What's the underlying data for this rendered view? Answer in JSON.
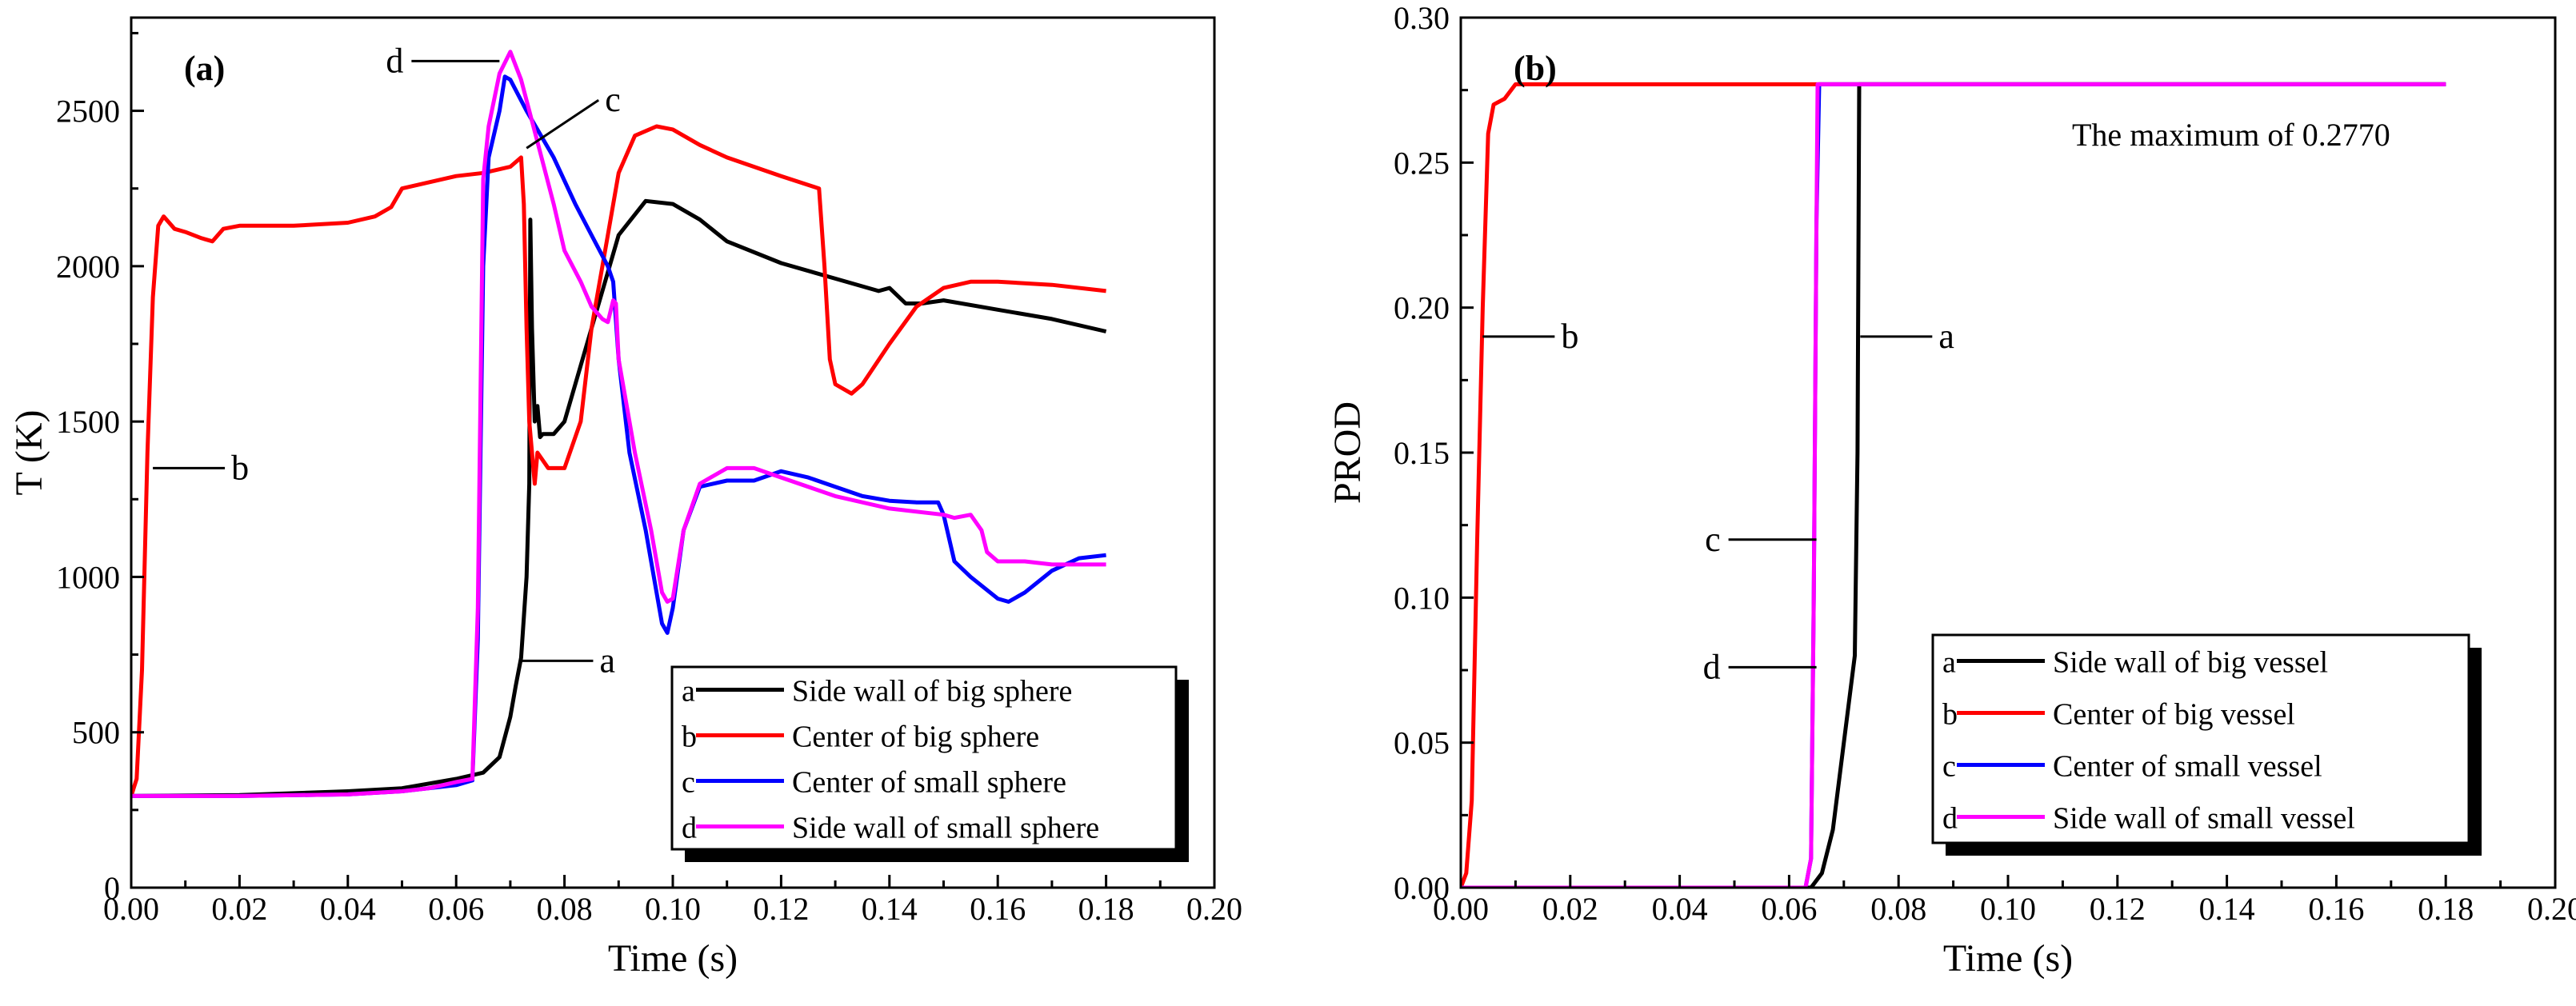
{
  "chart_data": [
    {
      "type": "line",
      "panel_label": "(a)",
      "xlabel": "Time (s)",
      "ylabel": "T (K)",
      "xlim": [
        0,
        0.2
      ],
      "ylim": [
        0,
        2800
      ],
      "xticks": [
        "0.00",
        "0.02",
        "0.04",
        "0.06",
        "0.08",
        "0.10",
        "0.12",
        "0.14",
        "0.16",
        "0.18",
        "0.20"
      ],
      "yticks": [
        "0",
        "500",
        "1000",
        "1500",
        "2000",
        "2500"
      ],
      "legend_position": "bottom-right",
      "series": [
        {
          "key": "a",
          "name": "Side wall of big sphere",
          "color": "#000000",
          "points": [
            [
              0,
              295
            ],
            [
              0.02,
              298
            ],
            [
              0.04,
              310
            ],
            [
              0.05,
              320
            ],
            [
              0.06,
              350
            ],
            [
              0.065,
              370
            ],
            [
              0.068,
              420
            ],
            [
              0.07,
              550
            ],
            [
              0.071,
              650
            ],
            [
              0.072,
              740
            ],
            [
              0.073,
              1000
            ],
            [
              0.0735,
              1300
            ],
            [
              0.0737,
              2150
            ],
            [
              0.074,
              1800
            ],
            [
              0.0745,
              1500
            ],
            [
              0.075,
              1550
            ],
            [
              0.0755,
              1450
            ],
            [
              0.076,
              1460
            ],
            [
              0.078,
              1460
            ],
            [
              0.08,
              1500
            ],
            [
              0.085,
              1800
            ],
            [
              0.09,
              2100
            ],
            [
              0.095,
              2210
            ],
            [
              0.1,
              2200
            ],
            [
              0.105,
              2150
            ],
            [
              0.11,
              2080
            ],
            [
              0.12,
              2010
            ],
            [
              0.13,
              1960
            ],
            [
              0.138,
              1920
            ],
            [
              0.14,
              1930
            ],
            [
              0.143,
              1880
            ],
            [
              0.146,
              1880
            ],
            [
              0.15,
              1890
            ],
            [
              0.16,
              1860
            ],
            [
              0.17,
              1830
            ],
            [
              0.18,
              1790
            ]
          ]
        },
        {
          "key": "b",
          "name": "Center of big sphere",
          "color": "#ff0000",
          "points": [
            [
              0,
              295
            ],
            [
              0.001,
              350
            ],
            [
              0.002,
              700
            ],
            [
              0.003,
              1400
            ],
            [
              0.004,
              1900
            ],
            [
              0.005,
              2130
            ],
            [
              0.006,
              2160
            ],
            [
              0.008,
              2120
            ],
            [
              0.01,
              2110
            ],
            [
              0.013,
              2090
            ],
            [
              0.015,
              2080
            ],
            [
              0.017,
              2120
            ],
            [
              0.02,
              2130
            ],
            [
              0.03,
              2130
            ],
            [
              0.04,
              2140
            ],
            [
              0.045,
              2160
            ],
            [
              0.048,
              2190
            ],
            [
              0.05,
              2250
            ],
            [
              0.055,
              2270
            ],
            [
              0.06,
              2290
            ],
            [
              0.065,
              2300
            ],
            [
              0.07,
              2320
            ],
            [
              0.072,
              2350
            ],
            [
              0.0725,
              2200
            ],
            [
              0.073,
              1800
            ],
            [
              0.0735,
              1500
            ],
            [
              0.0745,
              1300
            ],
            [
              0.075,
              1400
            ],
            [
              0.077,
              1350
            ],
            [
              0.08,
              1350
            ],
            [
              0.083,
              1500
            ],
            [
              0.085,
              1800
            ],
            [
              0.088,
              2100
            ],
            [
              0.09,
              2300
            ],
            [
              0.093,
              2420
            ],
            [
              0.097,
              2450
            ],
            [
              0.1,
              2440
            ],
            [
              0.105,
              2390
            ],
            [
              0.11,
              2350
            ],
            [
              0.12,
              2290
            ],
            [
              0.127,
              2250
            ],
            [
              0.128,
              2000
            ],
            [
              0.129,
              1700
            ],
            [
              0.13,
              1620
            ],
            [
              0.133,
              1590
            ],
            [
              0.135,
              1620
            ],
            [
              0.14,
              1750
            ],
            [
              0.145,
              1870
            ],
            [
              0.15,
              1930
            ],
            [
              0.155,
              1950
            ],
            [
              0.16,
              1950
            ],
            [
              0.17,
              1940
            ],
            [
              0.18,
              1920
            ]
          ]
        },
        {
          "key": "c",
          "name": "Center of small sphere",
          "color": "#0000ff",
          "points": [
            [
              0,
              295
            ],
            [
              0.02,
              295
            ],
            [
              0.04,
              300
            ],
            [
              0.05,
              310
            ],
            [
              0.055,
              320
            ],
            [
              0.06,
              330
            ],
            [
              0.063,
              345
            ],
            [
              0.064,
              800
            ],
            [
              0.065,
              2000
            ],
            [
              0.066,
              2350
            ],
            [
              0.068,
              2500
            ],
            [
              0.069,
              2610
            ],
            [
              0.07,
              2600
            ],
            [
              0.073,
              2500
            ],
            [
              0.078,
              2350
            ],
            [
              0.082,
              2200
            ],
            [
              0.085,
              2100
            ],
            [
              0.088,
              2000
            ],
            [
              0.089,
              1950
            ],
            [
              0.09,
              1700
            ],
            [
              0.092,
              1400
            ],
            [
              0.095,
              1150
            ],
            [
              0.097,
              950
            ],
            [
              0.098,
              850
            ],
            [
              0.099,
              820
            ],
            [
              0.1,
              900
            ],
            [
              0.102,
              1150
            ],
            [
              0.105,
              1290
            ],
            [
              0.11,
              1310
            ],
            [
              0.115,
              1310
            ],
            [
              0.12,
              1340
            ],
            [
              0.125,
              1320
            ],
            [
              0.13,
              1290
            ],
            [
              0.135,
              1260
            ],
            [
              0.14,
              1245
            ],
            [
              0.145,
              1240
            ],
            [
              0.149,
              1240
            ],
            [
              0.15,
              1200
            ],
            [
              0.152,
              1050
            ],
            [
              0.155,
              1000
            ],
            [
              0.16,
              930
            ],
            [
              0.162,
              920
            ],
            [
              0.165,
              950
            ],
            [
              0.17,
              1020
            ],
            [
              0.175,
              1060
            ],
            [
              0.18,
              1070
            ]
          ]
        },
        {
          "key": "d",
          "name": "Side wall of small sphere",
          "color": "#ff00ff",
          "points": [
            [
              0,
              295
            ],
            [
              0.02,
              295
            ],
            [
              0.04,
              300
            ],
            [
              0.05,
              310
            ],
            [
              0.055,
              320
            ],
            [
              0.06,
              340
            ],
            [
              0.063,
              350
            ],
            [
              0.064,
              900
            ],
            [
              0.065,
              2280
            ],
            [
              0.066,
              2450
            ],
            [
              0.068,
              2620
            ],
            [
              0.07,
              2690
            ],
            [
              0.072,
              2600
            ],
            [
              0.075,
              2400
            ],
            [
              0.078,
              2200
            ],
            [
              0.08,
              2050
            ],
            [
              0.083,
              1950
            ],
            [
              0.085,
              1870
            ],
            [
              0.087,
              1830
            ],
            [
              0.088,
              1820
            ],
            [
              0.089,
              1890
            ],
            [
              0.0895,
              1880
            ],
            [
              0.09,
              1700
            ],
            [
              0.093,
              1400
            ],
            [
              0.096,
              1150
            ],
            [
              0.098,
              950
            ],
            [
              0.099,
              920
            ],
            [
              0.1,
              930
            ],
            [
              0.102,
              1150
            ],
            [
              0.105,
              1300
            ],
            [
              0.11,
              1350
            ],
            [
              0.115,
              1350
            ],
            [
              0.12,
              1320
            ],
            [
              0.13,
              1260
            ],
            [
              0.14,
              1220
            ],
            [
              0.15,
              1200
            ],
            [
              0.152,
              1190
            ],
            [
              0.155,
              1200
            ],
            [
              0.157,
              1150
            ],
            [
              0.158,
              1080
            ],
            [
              0.16,
              1050
            ],
            [
              0.165,
              1050
            ],
            [
              0.17,
              1040
            ],
            [
              0.18,
              1040
            ]
          ]
        }
      ],
      "curve_labels": [
        {
          "key": "a",
          "text": "a",
          "x": 0.072,
          "y": 730
        },
        {
          "key": "b",
          "text": "b",
          "x": 0.004,
          "y": 1350
        },
        {
          "key": "c",
          "text": "c",
          "x": 0.073,
          "y": 2380
        },
        {
          "key": "d",
          "text": "d",
          "x": 0.068,
          "y": 2660
        }
      ]
    },
    {
      "type": "line",
      "panel_label": "(b)",
      "xlabel": "Time (s)",
      "ylabel": "PROD",
      "xlim": [
        0,
        0.2
      ],
      "ylim": [
        0,
        0.3
      ],
      "xticks": [
        "0.00",
        "0.02",
        "0.04",
        "0.06",
        "0.08",
        "0.10",
        "0.12",
        "0.14",
        "0.16",
        "0.18",
        "0.20"
      ],
      "yticks": [
        "0.00",
        "0.05",
        "0.10",
        "0.15",
        "0.20",
        "0.25",
        "0.30"
      ],
      "legend_position": "bottom-right",
      "annotation": "The maximum of 0.2770",
      "series": [
        {
          "key": "a",
          "name": "Side wall of big vessel",
          "color": "#000000",
          "points": [
            [
              0,
              0
            ],
            [
              0.064,
              0
            ],
            [
              0.066,
              0.005
            ],
            [
              0.068,
              0.02
            ],
            [
              0.07,
              0.05
            ],
            [
              0.072,
              0.08
            ],
            [
              0.0725,
              0.15
            ],
            [
              0.0728,
              0.277
            ],
            [
              0.18,
              0.277
            ]
          ]
        },
        {
          "key": "b",
          "name": "Center of big vessel",
          "color": "#ff0000",
          "points": [
            [
              0,
              0
            ],
            [
              0.001,
              0.005
            ],
            [
              0.002,
              0.03
            ],
            [
              0.003,
              0.12
            ],
            [
              0.004,
              0.2
            ],
            [
              0.005,
              0.26
            ],
            [
              0.006,
              0.27
            ],
            [
              0.008,
              0.272
            ],
            [
              0.01,
              0.277
            ],
            [
              0.18,
              0.277
            ]
          ]
        },
        {
          "key": "c",
          "name": "Center of small vessel",
          "color": "#0000ff",
          "points": [
            [
              0,
              0
            ],
            [
              0.063,
              0
            ],
            [
              0.064,
              0.01
            ],
            [
              0.0645,
              0.1
            ],
            [
              0.065,
              0.23
            ],
            [
              0.0655,
              0.277
            ],
            [
              0.18,
              0.277
            ]
          ]
        },
        {
          "key": "d",
          "name": "Side wall of small vessel",
          "color": "#ff00ff",
          "points": [
            [
              0,
              0
            ],
            [
              0.063,
              0
            ],
            [
              0.064,
              0.01
            ],
            [
              0.0645,
              0.1
            ],
            [
              0.065,
              0.23
            ],
            [
              0.0652,
              0.277
            ],
            [
              0.18,
              0.277
            ]
          ]
        }
      ],
      "curve_labels": [
        {
          "key": "a",
          "text": "a",
          "x": 0.073,
          "y": 0.19
        },
        {
          "key": "b",
          "text": "b",
          "x": 0.004,
          "y": 0.19
        },
        {
          "key": "c",
          "text": "c",
          "x": 0.065,
          "y": 0.12
        },
        {
          "key": "d",
          "text": "d",
          "x": 0.065,
          "y": 0.076
        }
      ]
    }
  ]
}
